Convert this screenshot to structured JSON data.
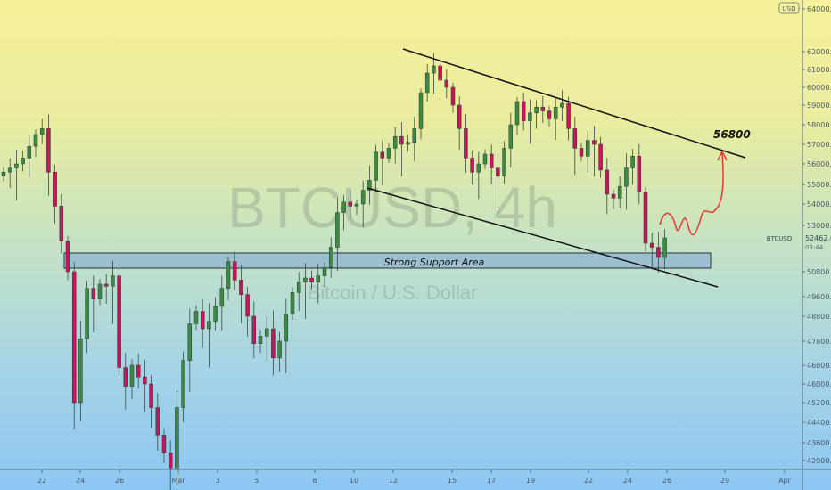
{
  "chart_data": {
    "type": "candlestick",
    "symbol_watermark": "BTCUSD, 4h",
    "description_watermark": "Bitcoin / U.S. Dollar",
    "currency": "USD",
    "y_ticks": [
      "64000.0",
      "62000.0",
      "61000.0",
      "60000.0",
      "59000.0",
      "58000.0",
      "57000.0",
      "56000.0",
      "55000.0",
      "54000.0",
      "53000.0",
      "50800.0",
      "49600.0",
      "48800.0",
      "47800.0",
      "46800.0",
      "46000.0",
      "45200.0",
      "44400.0",
      "43600.0",
      "42900.0"
    ],
    "x_ticks": [
      "22",
      "24",
      "26",
      "Mar",
      "3",
      "5",
      "8",
      "10",
      "12",
      "15",
      "17",
      "19",
      "22",
      "24",
      "26",
      "29",
      "Apr"
    ],
    "last_price": {
      "symbol": "BTCUSD",
      "value": "52462.0",
      "countdown": "03:44"
    },
    "closes": [
      55600,
      55800,
      56000,
      56300,
      56900,
      57500,
      57800,
      55600,
      53900,
      52300,
      50800,
      45200,
      47900,
      50000,
      49500,
      50200,
      50100,
      50600,
      46700,
      45900,
      46800,
      46300,
      46000,
      45000,
      43900,
      43200,
      42600,
      45000,
      47000,
      48500,
      49000,
      48300,
      48600,
      49200,
      50000,
      51300,
      50400,
      49700,
      48800,
      47700,
      48000,
      48300,
      47100,
      47800,
      48900,
      49800,
      50300,
      50500,
      50300,
      50600,
      51000,
      52000,
      53600,
      54100,
      53900,
      54000,
      54700,
      55200,
      56600,
      56300,
      56800,
      57400,
      57000,
      57100,
      57800,
      59700,
      60800,
      61200,
      60400,
      60000,
      59000,
      57800,
      56300,
      55600,
      56000,
      56500,
      55800,
      55400,
      56800,
      58000,
      59200,
      58200,
      58600,
      58900,
      58700,
      58300,
      58900,
      59100,
      57800,
      56800,
      56400,
      57200,
      57000,
      55700,
      54500,
      54300,
      54900,
      55800,
      56400,
      54600,
      52200,
      52000,
      51500,
      52462
    ],
    "annotations": {
      "support_label": "Strong Support Area",
      "target_label": "56800"
    },
    "colors": {
      "up": "#3d8a45",
      "down": "#c2185b",
      "projection": "#e53935",
      "zone": "#7ea6d8"
    }
  }
}
